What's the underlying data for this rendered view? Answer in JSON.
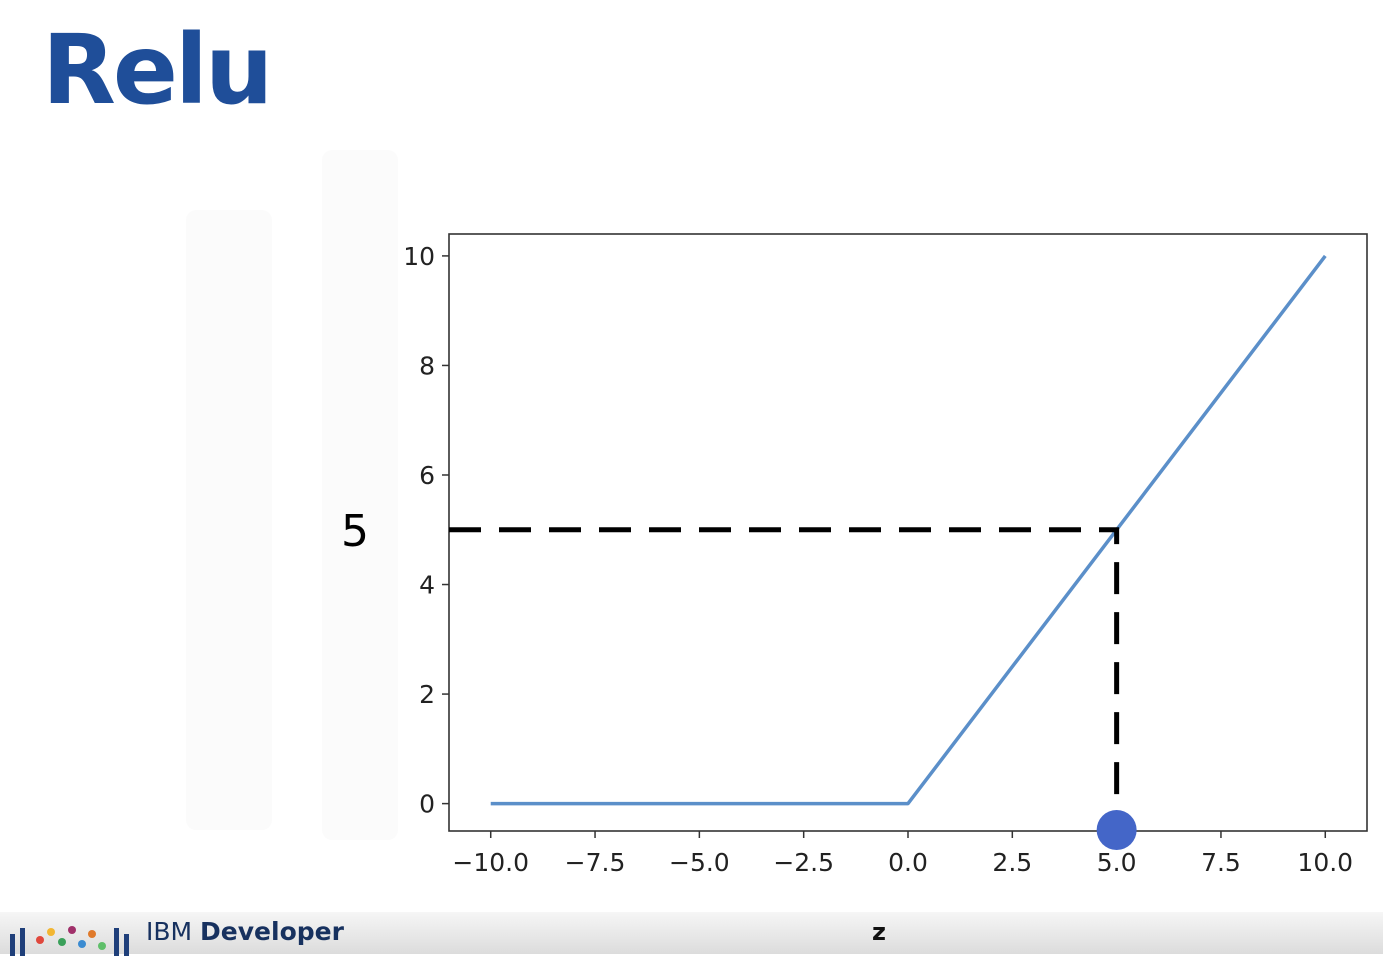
{
  "slide": {
    "title": "Relu",
    "brand_prefix": "IBM",
    "brand_suffix": "Developer"
  },
  "colors": {
    "title": "#1f4e99",
    "line": "#5b8fc9",
    "marker": "#4466c8",
    "dashed": "#000000"
  },
  "chart_data": {
    "type": "line",
    "title": "",
    "xlabel": "z",
    "ylabel": "",
    "x": [
      -10,
      0,
      10
    ],
    "series": [
      {
        "values": [
          0,
          0,
          10
        ]
      }
    ],
    "xlim": [
      -11,
      11
    ],
    "ylim": [
      -0.5,
      10.4
    ],
    "xticks": [
      -10,
      -7.5,
      -5,
      -2.5,
      0,
      2.5,
      5,
      7.5,
      10
    ],
    "xtick_labels": [
      "−10.0",
      "−7.5",
      "−5.0",
      "−2.5",
      "0.0",
      "2.5",
      "5.0",
      "7.5",
      "10.0"
    ],
    "yticks": [
      0,
      2,
      4,
      6,
      8,
      10
    ],
    "ytick_labels": [
      "0",
      "2",
      "4",
      "6",
      "8",
      "10"
    ],
    "grid": false,
    "annotation": {
      "point": [
        5,
        5
      ],
      "label": "5",
      "marker_x": 5
    }
  }
}
